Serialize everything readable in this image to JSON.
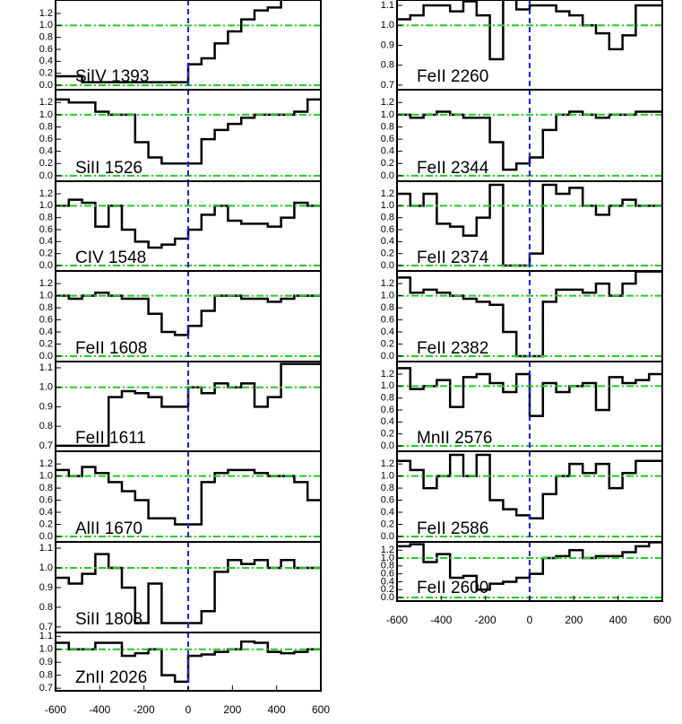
{
  "chart_data": [
    {
      "type": "step",
      "title": "SiIV 1393",
      "x": [
        -600,
        -540,
        -480,
        -420,
        -360,
        -300,
        -240,
        -180,
        -120,
        -60,
        0,
        60,
        120,
        180,
        240,
        300,
        360,
        420,
        480,
        540
      ],
      "values": [
        0.15,
        0.15,
        0.05,
        0.05,
        0.05,
        0.05,
        0.05,
        0.05,
        0.05,
        0.05,
        0.35,
        0.45,
        0.7,
        0.9,
        1.1,
        1.25,
        1.3,
        1.45,
        1.45,
        1.45
      ],
      "xlim": [
        -600,
        600
      ],
      "ylim": [
        -0.075,
        1.425
      ],
      "yticks": [
        {
          "value": 0,
          "label": "0.0"
        },
        0.2,
        0.4,
        0.6,
        0.8,
        {
          "value": 1,
          "label": "1.0"
        },
        1.2
      ],
      "hlines": [
        0,
        1
      ],
      "vline": 0
    },
    {
      "type": "step",
      "title": "SiII 1526",
      "x": [
        -600,
        -540,
        -480,
        -420,
        -360,
        -300,
        -240,
        -180,
        -120,
        -60,
        0,
        60,
        120,
        180,
        240,
        300,
        360,
        420,
        480,
        540
      ],
      "values": [
        1.25,
        1.2,
        1.2,
        1.05,
        1.0,
        1.0,
        0.55,
        0.3,
        0.2,
        0.2,
        0.2,
        0.6,
        0.75,
        0.85,
        0.95,
        1.0,
        1.0,
        1.0,
        1.05,
        1.25
      ],
      "xlim": [
        -600,
        600
      ],
      "ylim": [
        -0.09,
        1.41
      ],
      "yticks": [
        {
          "value": 0,
          "label": "0.0"
        },
        0.2,
        0.4,
        0.6,
        0.8,
        {
          "value": 1,
          "label": "1.0"
        },
        1.2
      ],
      "hlines": [
        0,
        1
      ],
      "vline": 0
    },
    {
      "type": "step",
      "title": "CIV 1548",
      "x": [
        -600,
        -540,
        -480,
        -420,
        -360,
        -300,
        -240,
        -180,
        -120,
        -60,
        0,
        60,
        120,
        180,
        240,
        300,
        360,
        420,
        480,
        540
      ],
      "values": [
        1.0,
        1.1,
        1.05,
        0.65,
        1.0,
        0.6,
        0.4,
        0.3,
        0.35,
        0.45,
        0.6,
        0.85,
        1.0,
        0.75,
        0.7,
        0.7,
        0.65,
        0.8,
        1.05,
        1.0
      ],
      "xlim": [
        -600,
        600
      ],
      "ylim": [
        -0.09,
        1.41
      ],
      "yticks": [
        {
          "value": 0,
          "label": "0.0"
        },
        0.2,
        0.4,
        0.6,
        0.8,
        {
          "value": 1,
          "label": "1.0"
        },
        1.2
      ],
      "hlines": [
        0,
        1
      ],
      "vline": 0
    },
    {
      "type": "step",
      "title": "FeII 1608",
      "x": [
        -600,
        -540,
        -480,
        -420,
        -360,
        -300,
        -240,
        -180,
        -120,
        -60,
        0,
        60,
        120,
        180,
        240,
        300,
        360,
        420,
        480,
        540
      ],
      "values": [
        1.0,
        0.95,
        1.0,
        1.05,
        1.0,
        0.95,
        0.95,
        0.7,
        0.4,
        0.35,
        0.5,
        0.75,
        1.0,
        1.0,
        0.95,
        0.95,
        0.9,
        0.95,
        1.0,
        1.0
      ],
      "xlim": [
        -600,
        600
      ],
      "ylim": [
        -0.09,
        1.41
      ],
      "yticks": [
        {
          "value": 0,
          "label": "0.0"
        },
        0.2,
        0.4,
        0.6,
        0.8,
        {
          "value": 1,
          "label": "1.0"
        },
        1.2
      ],
      "hlines": [
        0,
        1
      ],
      "vline": 0
    },
    {
      "type": "step",
      "title": "FeII 1611",
      "x": [
        -600,
        -540,
        -480,
        -420,
        -360,
        -300,
        -240,
        -180,
        -120,
        -60,
        0,
        60,
        120,
        180,
        240,
        300,
        360,
        420,
        480,
        540
      ],
      "values": [
        0.7,
        0.7,
        0.7,
        0.7,
        0.95,
        0.98,
        0.97,
        0.95,
        0.9,
        0.9,
        1.0,
        0.97,
        1.02,
        1.0,
        1.02,
        0.9,
        0.95,
        1.12,
        1.12,
        1.12
      ],
      "xlim": [
        -600,
        600
      ],
      "ylim": [
        0.672,
        1.132
      ],
      "yticks": [
        0.7,
        0.8,
        0.9,
        {
          "value": 1,
          "label": "1.0"
        },
        1.1
      ],
      "hlines": [
        1
      ],
      "vline": 0
    },
    {
      "type": "step",
      "title": "AlII 1670",
      "x": [
        -600,
        -540,
        -480,
        -420,
        -360,
        -300,
        -240,
        -180,
        -120,
        -60,
        0,
        60,
        120,
        180,
        240,
        300,
        360,
        420,
        480,
        540
      ],
      "values": [
        1.1,
        1.0,
        1.15,
        1.05,
        0.9,
        0.75,
        0.6,
        0.3,
        0.3,
        0.2,
        0.2,
        0.9,
        1.05,
        1.1,
        1.1,
        1.05,
        1.0,
        1.0,
        0.9,
        0.6
      ],
      "xlim": [
        -600,
        600
      ],
      "ylim": [
        -0.09,
        1.41
      ],
      "yticks": [
        {
          "value": 0,
          "label": "0.0"
        },
        0.2,
        0.4,
        0.6,
        0.8,
        {
          "value": 1,
          "label": "1.0"
        },
        1.2
      ],
      "hlines": [
        0,
        1
      ],
      "vline": 0
    },
    {
      "type": "step",
      "title": "SiII 1808",
      "x": [
        -600,
        -540,
        -480,
        -420,
        -360,
        -300,
        -240,
        -180,
        -120,
        -60,
        0,
        60,
        120,
        180,
        240,
        300,
        360,
        420,
        480,
        540
      ],
      "values": [
        0.95,
        0.92,
        0.97,
        1.07,
        1.0,
        0.9,
        0.72,
        0.92,
        0.72,
        0.72,
        0.72,
        0.78,
        0.98,
        1.04,
        1.02,
        1.04,
        1.0,
        1.04,
        1.0,
        1.0
      ],
      "xlim": [
        -600,
        600
      ],
      "ylim": [
        0.672,
        1.132
      ],
      "yticks": [
        0.7,
        0.8,
        0.9,
        {
          "value": 1,
          "label": "1.0"
        },
        1.1
      ],
      "hlines": [
        1
      ],
      "vline": 0
    },
    {
      "type": "step",
      "title": "ZnII 2026",
      "x": [
        -600,
        -540,
        -480,
        -420,
        -360,
        -300,
        -240,
        -180,
        -120,
        -60,
        0,
        60,
        120,
        180,
        240,
        300,
        360,
        420,
        480,
        540
      ],
      "values": [
        1.05,
        1.0,
        1.0,
        1.05,
        1.05,
        0.95,
        0.97,
        1.0,
        0.8,
        0.75,
        0.95,
        0.96,
        0.98,
        1.0,
        1.06,
        1.05,
        0.98,
        0.97,
        0.98,
        1.0
      ],
      "xlim": [
        -600,
        600
      ],
      "ylim": [
        0.68,
        1.13
      ],
      "yticks": [
        0.7,
        0.8,
        0.9,
        {
          "value": 1,
          "label": "1.0"
        },
        1.1
      ],
      "hlines": [
        1
      ],
      "vline": 0,
      "xticks": [
        -600,
        -400,
        -200,
        0,
        200,
        400,
        600
      ]
    },
    {
      "type": "step",
      "title": "FeII 2260",
      "x": [
        -600,
        -540,
        -480,
        -420,
        -360,
        -300,
        -240,
        -180,
        -120,
        -60,
        0,
        60,
        120,
        180,
        240,
        300,
        360,
        420,
        480,
        540
      ],
      "values": [
        1.03,
        1.05,
        1.1,
        1.1,
        1.07,
        1.12,
        1.05,
        0.83,
        1.15,
        1.08,
        1.1,
        1.1,
        1.07,
        1.05,
        1.0,
        0.96,
        0.88,
        0.95,
        1.1,
        1.1
      ],
      "xlim": [
        -600,
        600
      ],
      "ylim": [
        0.677,
        1.127
      ],
      "yticks": [
        0.7,
        0.8,
        0.9,
        {
          "value": 1,
          "label": "1.0"
        },
        1.1
      ],
      "hlines": [
        1
      ],
      "vline": 0
    },
    {
      "type": "step",
      "title": "FeII 2344",
      "x": [
        -600,
        -540,
        -480,
        -420,
        -360,
        -300,
        -240,
        -180,
        -120,
        -60,
        0,
        60,
        120,
        180,
        240,
        300,
        360,
        420,
        480,
        540
      ],
      "values": [
        1.0,
        0.95,
        1.0,
        1.05,
        1.0,
        0.95,
        0.95,
        0.55,
        0.1,
        0.2,
        0.3,
        0.75,
        1.0,
        1.05,
        1.0,
        0.95,
        1.0,
        1.0,
        1.05,
        1.05
      ],
      "xlim": [
        -600,
        600
      ],
      "ylim": [
        -0.09,
        1.41
      ],
      "yticks": [
        {
          "value": 0,
          "label": "0.0"
        },
        0.2,
        0.4,
        0.6,
        0.8,
        {
          "value": 1,
          "label": "1.0"
        },
        1.2
      ],
      "hlines": [
        0,
        1
      ],
      "vline": 0
    },
    {
      "type": "step",
      "title": "FeII 2374",
      "x": [
        -600,
        -540,
        -480,
        -420,
        -360,
        -300,
        -240,
        -180,
        -120,
        -60,
        0,
        60,
        120,
        180,
        240,
        300,
        360,
        420,
        480,
        540
      ],
      "values": [
        1.2,
        1.0,
        1.2,
        0.7,
        0.65,
        0.5,
        0.8,
        1.35,
        0.0,
        0.0,
        0.2,
        1.35,
        1.2,
        1.3,
        1.0,
        0.85,
        1.0,
        1.1,
        1.0,
        1.0
      ],
      "xlim": [
        -600,
        600
      ],
      "ylim": [
        -0.09,
        1.41
      ],
      "yticks": [
        {
          "value": 0,
          "label": "0.0"
        },
        0.2,
        0.4,
        0.6,
        0.8,
        {
          "value": 1,
          "label": "1.0"
        },
        1.2
      ],
      "hlines": [
        0,
        1
      ],
      "vline": 0
    },
    {
      "type": "step",
      "title": "FeII 2382",
      "x": [
        -600,
        -540,
        -480,
        -420,
        -360,
        -300,
        -240,
        -180,
        -120,
        -60,
        0,
        60,
        120,
        180,
        240,
        300,
        360,
        420,
        480,
        540
      ],
      "values": [
        1.3,
        1.05,
        1.1,
        1.05,
        1.0,
        0.95,
        0.9,
        0.85,
        0.4,
        0.0,
        0.0,
        0.9,
        1.1,
        1.1,
        1.05,
        1.2,
        1.0,
        1.2,
        1.4,
        1.4
      ],
      "xlim": [
        -600,
        600
      ],
      "ylim": [
        -0.09,
        1.41
      ],
      "yticks": [
        {
          "value": 0,
          "label": "0.0"
        },
        0.2,
        0.4,
        0.6,
        0.8,
        {
          "value": 1,
          "label": "1.0"
        },
        1.2
      ],
      "hlines": [
        0,
        1
      ],
      "vline": 0
    },
    {
      "type": "step",
      "title": "MnII 2576",
      "x": [
        -600,
        -540,
        -480,
        -420,
        -360,
        -300,
        -240,
        -180,
        -120,
        -60,
        0,
        60,
        120,
        180,
        240,
        300,
        360,
        420,
        480,
        540
      ],
      "values": [
        1.3,
        0.95,
        1.0,
        1.1,
        0.65,
        1.15,
        1.2,
        1.05,
        0.9,
        1.2,
        0.5,
        1.05,
        0.9,
        1.0,
        1.05,
        0.6,
        1.15,
        1.05,
        1.1,
        1.2
      ],
      "xlim": [
        -600,
        600
      ],
      "ylim": [
        -0.09,
        1.41
      ],
      "yticks": [
        {
          "value": 0,
          "label": "0.0"
        },
        0.2,
        0.4,
        0.6,
        0.8,
        {
          "value": 1,
          "label": "1.0"
        },
        1.2
      ],
      "hlines": [
        0,
        1
      ],
      "vline": 0
    },
    {
      "type": "step",
      "title": "FeII 2586",
      "x": [
        -600,
        -540,
        -480,
        -420,
        -360,
        -300,
        -240,
        -180,
        -120,
        -60,
        0,
        60,
        120,
        180,
        240,
        300,
        360,
        420,
        480,
        540
      ],
      "values": [
        1.25,
        1.1,
        0.8,
        1.0,
        1.35,
        1.0,
        1.35,
        0.6,
        0.45,
        0.35,
        0.3,
        0.7,
        1.0,
        1.2,
        1.05,
        1.2,
        0.8,
        1.05,
        1.25,
        1.25
      ],
      "xlim": [
        -600,
        600
      ],
      "ylim": [
        -0.09,
        1.41
      ],
      "yticks": [
        {
          "value": 0,
          "label": "0.0"
        },
        0.2,
        0.4,
        0.6,
        0.8,
        {
          "value": 1,
          "label": "1.0"
        },
        1.2
      ],
      "hlines": [
        0,
        1
      ],
      "vline": 0
    },
    {
      "type": "step",
      "title": "FeII 2600",
      "x": [
        -600,
        -540,
        -480,
        -420,
        -360,
        -300,
        -240,
        -180,
        -120,
        -60,
        0,
        60,
        120,
        180,
        240,
        300,
        360,
        420,
        480,
        540
      ],
      "values": [
        1.3,
        1.35,
        0.9,
        1.1,
        0.5,
        0.55,
        0.2,
        0.35,
        0.4,
        0.5,
        0.6,
        1.0,
        1.05,
        1.2,
        1.0,
        1.05,
        1.05,
        1.15,
        1.3,
        1.4
      ],
      "xlim": [
        -600,
        600
      ],
      "ylim": [
        -0.09,
        1.41
      ],
      "yticks": [
        {
          "value": 0,
          "label": "0.0"
        },
        0.2,
        0.4,
        0.6,
        0.8,
        {
          "value": 1,
          "label": "1.0"
        },
        1.2
      ],
      "hlines": [
        0,
        1
      ],
      "vline": 0,
      "xticks": [
        -600,
        -400,
        -200,
        0,
        200,
        400,
        600
      ]
    }
  ]
}
